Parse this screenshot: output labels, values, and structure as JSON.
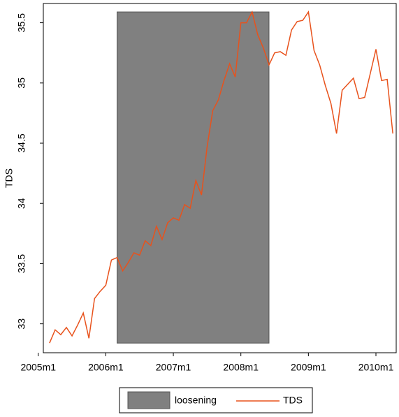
{
  "chart_data": {
    "type": "line",
    "ylabel": "TDS",
    "x": [
      542,
      543,
      544,
      545,
      546,
      547,
      548,
      549,
      550,
      551,
      552,
      553,
      554,
      555,
      556,
      557,
      558,
      559,
      560,
      561,
      562,
      563,
      564,
      565,
      566,
      567,
      568,
      569,
      570,
      571,
      572,
      573,
      574,
      575,
      576,
      577,
      578,
      579,
      580,
      581,
      582,
      583,
      584,
      585,
      586,
      587,
      588,
      589,
      590,
      591,
      592,
      593,
      594,
      595,
      596,
      597,
      598,
      599,
      600,
      601,
      602,
      603
    ],
    "series": [
      {
        "name": "TDS",
        "color": "#e8521c",
        "values": [
          32.84,
          32.95,
          32.91,
          32.97,
          32.9,
          32.99,
          33.09,
          32.88,
          33.21,
          33.27,
          33.32,
          33.53,
          33.55,
          33.44,
          33.51,
          33.59,
          33.57,
          33.69,
          33.65,
          33.81,
          33.7,
          33.84,
          33.88,
          33.86,
          33.99,
          33.96,
          34.19,
          34.07,
          34.47,
          34.77,
          34.86,
          35.02,
          35.16,
          35.05,
          35.5,
          35.5,
          35.59,
          35.4,
          35.29,
          35.15,
          35.25,
          35.26,
          35.23,
          35.44,
          35.51,
          35.52,
          35.59,
          35.27,
          35.15,
          34.98,
          34.83,
          34.58,
          34.94,
          34.99,
          35.04,
          34.87,
          34.88,
          35.08,
          35.28,
          35.02,
          35.03,
          34.58
        ]
      }
    ],
    "shaded_region": {
      "name": "loosening",
      "color": "#808080",
      "xrange": [
        554,
        581
      ],
      "yrange": [
        32.84,
        35.59
      ]
    },
    "xlim": [
      540.9,
      603.6
    ],
    "xticks": [
      {
        "value": 540,
        "label": "2005m1"
      },
      {
        "value": 552,
        "label": "2006m1"
      },
      {
        "value": 564,
        "label": "2007m1"
      },
      {
        "value": 576,
        "label": "2008m1"
      },
      {
        "value": 588,
        "label": "2009m1"
      },
      {
        "value": 600,
        "label": "2010m1"
      }
    ],
    "ylim": [
      32.76,
      35.66
    ],
    "yticks": [
      33,
      33.5,
      34,
      34.5,
      35,
      35.5
    ],
    "legend": "bottom"
  }
}
